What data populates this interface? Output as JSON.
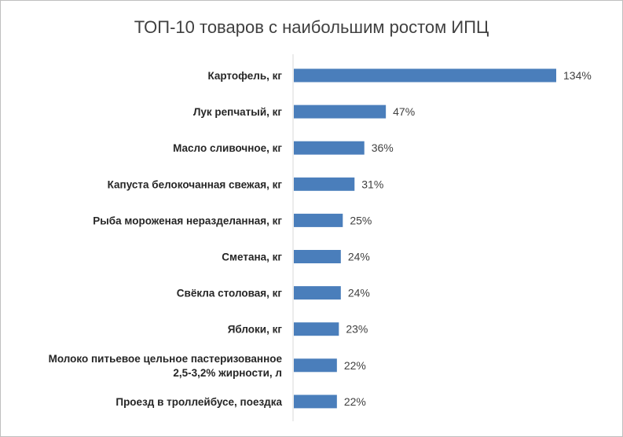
{
  "chart_data": {
    "type": "bar",
    "orientation": "horizontal",
    "title": "ТОП-10 товаров с наибольшим ростом ИПЦ",
    "xlabel": "",
    "ylabel": "",
    "categories": [
      [
        "Картофель, кг"
      ],
      [
        "Лук репчатый, кг"
      ],
      [
        "Масло сливочное, кг"
      ],
      [
        "Капуста белокочанная свежая, кг"
      ],
      [
        "Рыба мороженая неразделанная, кг"
      ],
      [
        "Сметана, кг"
      ],
      [
        "Свёкла столовая, кг"
      ],
      [
        "Яблоки, кг"
      ],
      [
        "Молоко питьевое цельное пастеризованное",
        "2,5-3,2% жирности, л"
      ],
      [
        "Проезд в троллейбусе, поездка"
      ]
    ],
    "values": [
      134,
      47,
      36,
      31,
      25,
      24,
      24,
      23,
      22,
      22
    ],
    "data_labels": [
      "134%",
      "47%",
      "36%",
      "31%",
      "25%",
      "24%",
      "24%",
      "23%",
      "22%",
      "22%"
    ],
    "unit": "%",
    "xlim": [
      0,
      150
    ],
    "grid": false,
    "legend": "none",
    "bar_color": "#4a7ebb",
    "axis_color": "#d9d9d9"
  }
}
